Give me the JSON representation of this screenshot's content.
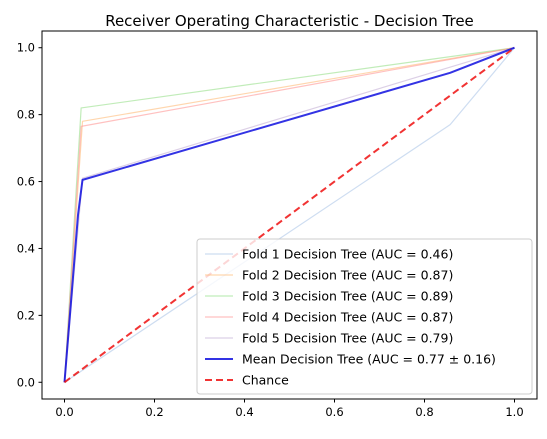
{
  "chart_data": {
    "type": "line",
    "title": "Receiver Operating Characteristic - Decision Tree",
    "xlabel": "",
    "ylabel": "",
    "xlim": [
      -0.05,
      1.05
    ],
    "ylim": [
      -0.05,
      1.05
    ],
    "xticks": [
      0.0,
      0.2,
      0.4,
      0.6,
      0.8,
      1.0
    ],
    "yticks": [
      0.0,
      0.2,
      0.4,
      0.6,
      0.8,
      1.0
    ],
    "xtick_labels": [
      "0.0",
      "0.2",
      "0.4",
      "0.6",
      "0.8",
      "1.0"
    ],
    "ytick_labels": [
      "0.0",
      "0.2",
      "0.4",
      "0.6",
      "0.8",
      "1.0"
    ],
    "grid": false,
    "legend_position": "lower right",
    "series": [
      {
        "name": "Fold 1 Decision Tree (AUC = 0.46)",
        "color": "#aec7e8",
        "style": "solid",
        "emphasis": "faint",
        "x": [
          0.0,
          0.857,
          1.0
        ],
        "y": [
          0.0,
          0.77,
          1.0
        ]
      },
      {
        "name": "Fold 2 Decision Tree (AUC = 0.87)",
        "color": "#ffbb78",
        "style": "solid",
        "emphasis": "faint",
        "x": [
          0.0,
          0.04,
          1.0
        ],
        "y": [
          0.0,
          0.78,
          1.0
        ]
      },
      {
        "name": "Fold 3 Decision Tree (AUC = 0.89)",
        "color": "#98df8a",
        "style": "solid",
        "emphasis": "faint",
        "x": [
          0.0,
          0.037,
          1.0
        ],
        "y": [
          0.0,
          0.82,
          1.0
        ]
      },
      {
        "name": "Fold 4 Decision Tree (AUC = 0.87)",
        "color": "#ff9896",
        "style": "solid",
        "emphasis": "faint",
        "x": [
          0.0,
          0.037,
          1.0
        ],
        "y": [
          0.0,
          0.765,
          1.0
        ]
      },
      {
        "name": "Fold 5 Decision Tree (AUC = 0.79)",
        "color": "#c5b0d5",
        "style": "solid",
        "emphasis": "faint",
        "x": [
          0.0,
          0.04,
          1.0
        ],
        "y": [
          0.0,
          0.61,
          1.0
        ]
      },
      {
        "name": "Mean Decision Tree (AUC = 0.77 ± 0.16)",
        "color": "#0000dd",
        "style": "solid",
        "emphasis": "bold",
        "x": [
          0.0,
          0.03,
          0.04,
          0.857,
          1.0
        ],
        "y": [
          0.0,
          0.5,
          0.605,
          0.925,
          1.0
        ]
      },
      {
        "name": "Chance",
        "color": "#ee0000",
        "style": "dashed",
        "emphasis": "bold",
        "x": [
          0.0,
          1.0
        ],
        "y": [
          0.0,
          1.0
        ]
      }
    ]
  }
}
